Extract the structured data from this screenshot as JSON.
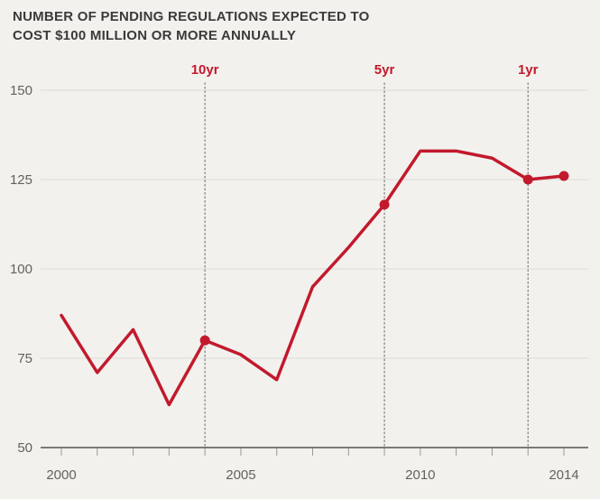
{
  "title": {
    "line1": "NUMBER OF PENDING REGULATIONS EXPECTED TO",
    "line2": "COST $100 MILLION OR MORE ANNUALLY"
  },
  "chart_data": {
    "type": "line",
    "title": "Number of pending regulations expected to cost $100 million or more annually",
    "x": [
      2000,
      2001,
      2002,
      2003,
      2004,
      2005,
      2006,
      2007,
      2008,
      2009,
      2010,
      2011,
      2012,
      2013,
      2014
    ],
    "values": [
      87,
      71,
      83,
      62,
      80,
      76,
      69,
      95,
      106,
      118,
      133,
      133,
      131,
      125,
      126
    ],
    "ylim": [
      50,
      150
    ],
    "yticks": [
      50,
      75,
      100,
      125,
      150
    ],
    "xticks": [
      2000,
      2005,
      2010,
      2014
    ],
    "grid": true,
    "legend": "none",
    "annotations": [
      {
        "label": "10yr",
        "year": 2004
      },
      {
        "label": "5yr",
        "year": 2009
      },
      {
        "label": "1yr",
        "year": 2013
      }
    ],
    "marker_years": [
      2004,
      2009,
      2013,
      2014
    ]
  },
  "colors": {
    "line": "#c21a2c",
    "background": "#f2f1ee",
    "grid": "#dcdbd8",
    "axis": "#53524f",
    "tick_label": "#63625e",
    "dotted_line": "#7d7c79",
    "title": "#3b3a38"
  }
}
